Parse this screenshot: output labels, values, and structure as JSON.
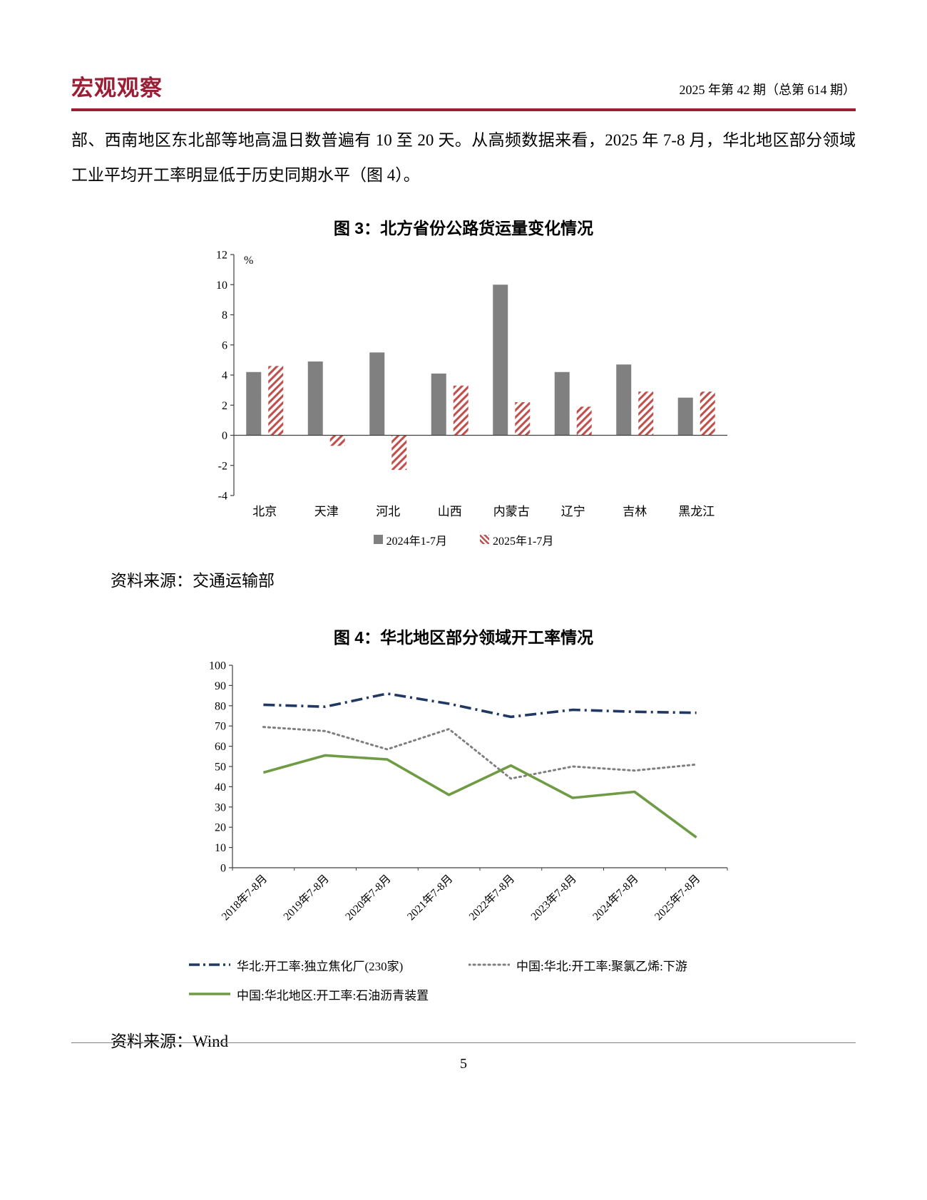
{
  "header": {
    "brand": "宏观观察",
    "brand_color": "#9C1E35",
    "issue": "2025 年第 42 期（总第 614 期）"
  },
  "body": {
    "paragraph": "部、西南地区东北部等地高温日数普遍有 10 至 20 天。从高频数据来看，2025 年 7-8 月，华北地区部分领域工业平均开工率明显低于历史同期水平（图 4）。"
  },
  "figure3": {
    "source": "资料来源：交通运输部"
  },
  "figure4": {
    "source": "资料来源：Wind"
  },
  "footer": {
    "page_number": "5"
  },
  "chart_data": [
    {
      "type": "bar",
      "title": "图 3：北方省份公路货运量变化情况",
      "unit": "%",
      "categories": [
        "北京",
        "天津",
        "河北",
        "山西",
        "内蒙古",
        "辽宁",
        "吉林",
        "黑龙江"
      ],
      "series": [
        {
          "name": "2024年1-7月",
          "color": "#808080",
          "pattern": "solid",
          "values": [
            4.2,
            4.9,
            5.5,
            4.1,
            10.0,
            4.2,
            4.7,
            2.5
          ]
        },
        {
          "name": "2025年1-7月",
          "color": "#C0504D",
          "pattern": "diagonal-hatch",
          "values": [
            4.6,
            -0.7,
            -2.3,
            3.3,
            2.2,
            1.9,
            2.9,
            2.9
          ]
        }
      ],
      "ylim": [
        -4,
        12
      ],
      "ytick_step": 2,
      "grid": false,
      "legend_position": "bottom"
    },
    {
      "type": "line",
      "title": "图 4：华北地区部分领域开工率情况",
      "categories": [
        "2018年7-8月",
        "2019年7-8月",
        "2020年7-8月",
        "2021年7-8月",
        "2022年7-8月",
        "2023年7-8月",
        "2024年7-8月",
        "2025年7-8月"
      ],
      "series": [
        {
          "name": "华北:开工率:独立焦化厂(230家)",
          "color": "#1F3864",
          "line_style": "dash-dot",
          "values": [
            80.5,
            79.5,
            86,
            81,
            74.5,
            78,
            77,
            76.5
          ]
        },
        {
          "name": "中国:华北:开工率:聚氯乙烯:下游",
          "color": "#7F7F7F",
          "line_style": "dotted",
          "values": [
            69.5,
            67.5,
            58.5,
            68.5,
            44,
            50,
            48,
            51
          ]
        },
        {
          "name": "中国:华北地区:开工率:石油沥青装置",
          "color": "#6E9B44",
          "line_style": "solid",
          "values": [
            47,
            55.5,
            53.5,
            36,
            50.5,
            34.5,
            37.5,
            15
          ]
        }
      ],
      "ylim": [
        0,
        100
      ],
      "ytick_step": 10,
      "grid": false,
      "legend_position": "bottom"
    }
  ]
}
